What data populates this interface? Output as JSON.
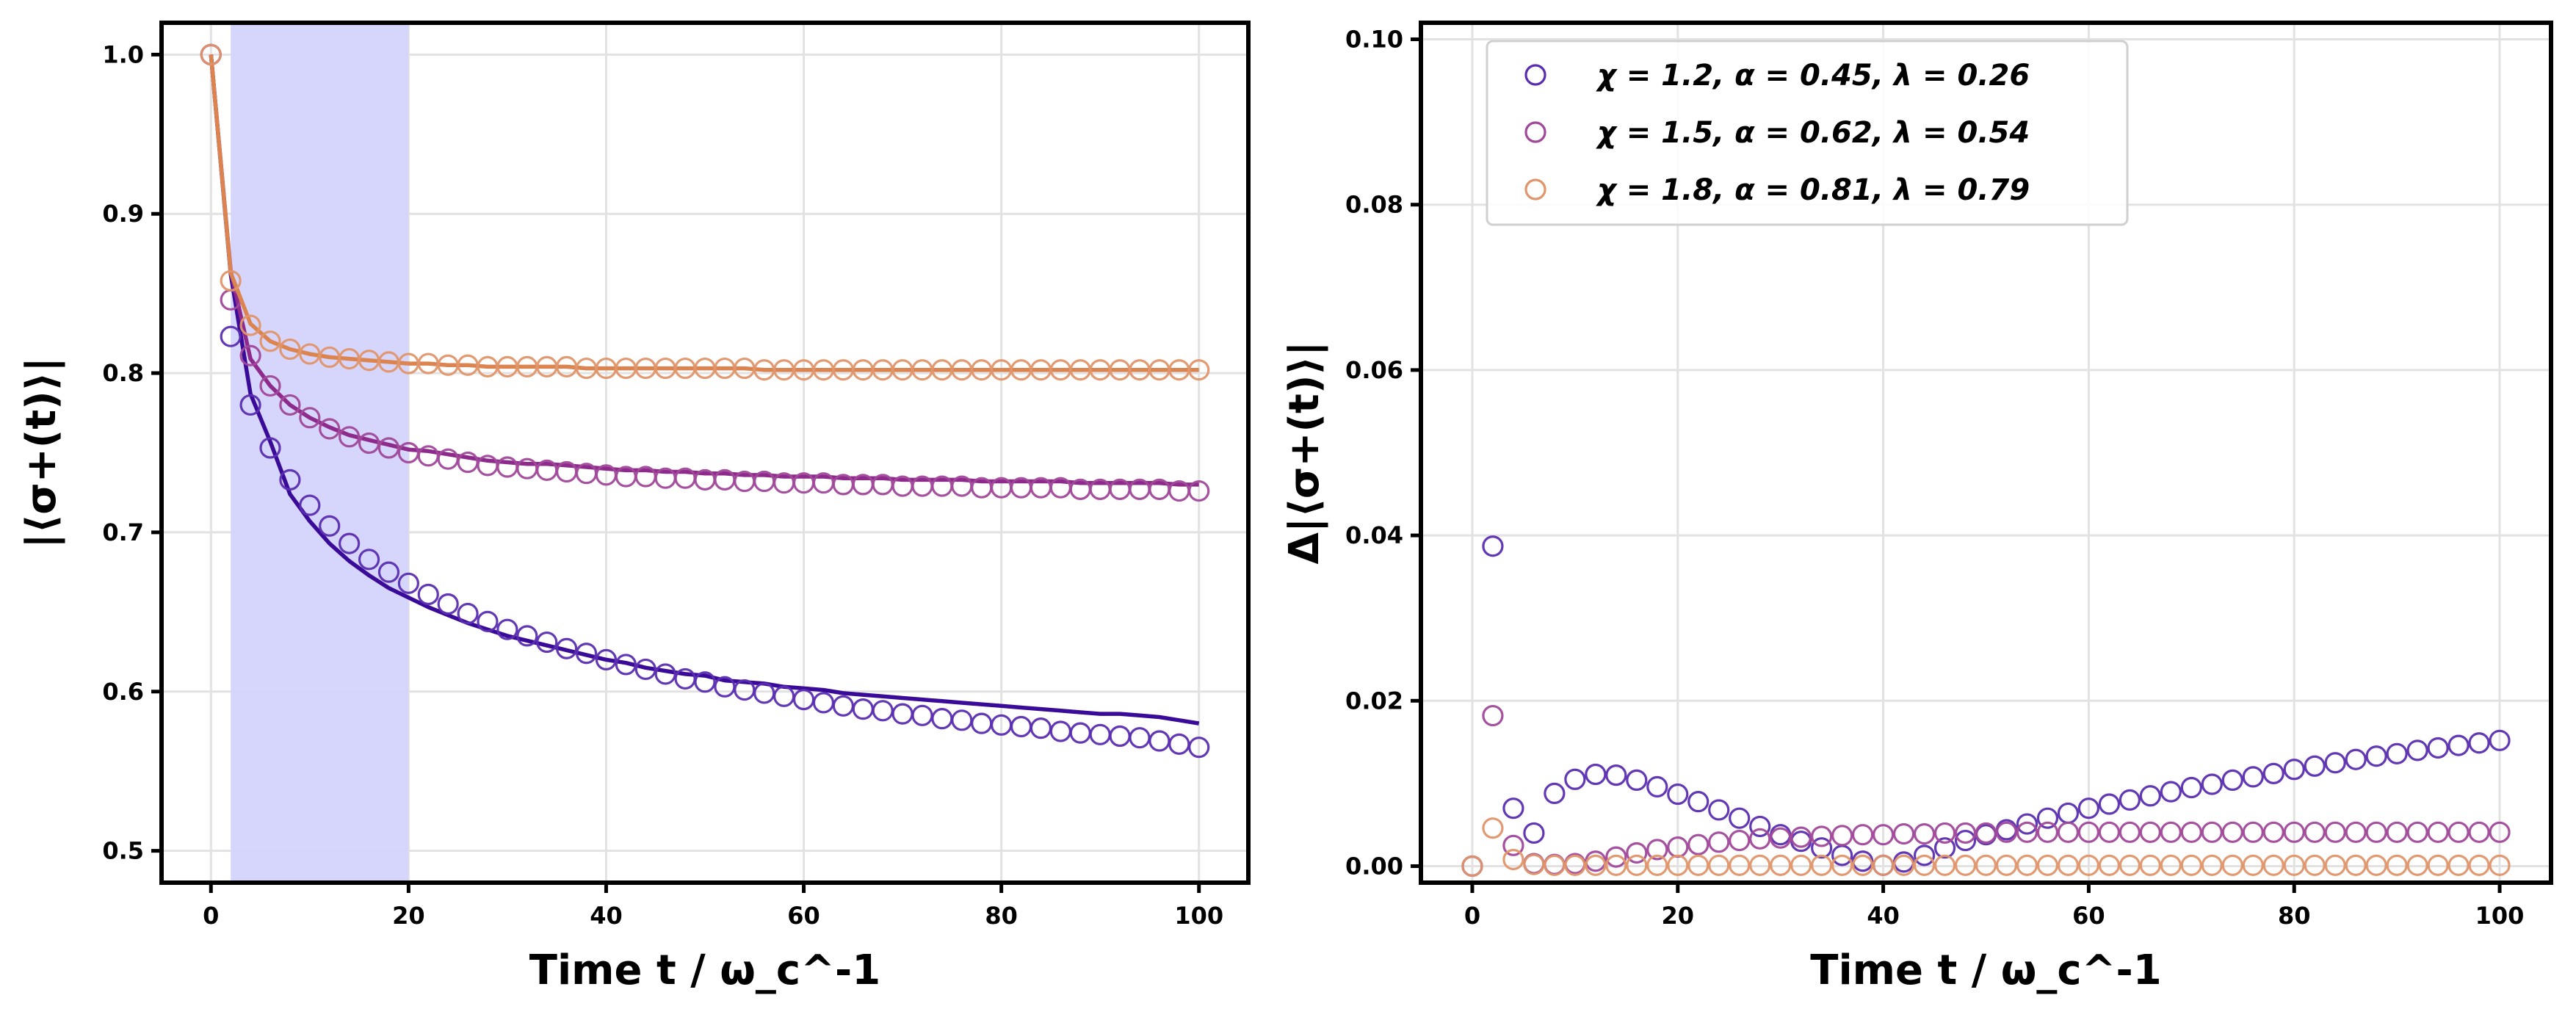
{
  "chart_data": [
    {
      "type": "line",
      "panel": "left",
      "xlabel": "Time t / ω_c^-1",
      "ylabel": "|⟨σ+(t)⟩|",
      "xlim": [
        -5,
        105
      ],
      "ylim": [
        0.48,
        1.02
      ],
      "xticks": [
        0,
        20,
        40,
        60,
        80,
        100
      ],
      "xtick_labels": [
        "0",
        "20",
        "40",
        "60",
        "80",
        "100"
      ],
      "yticks": [
        0.5,
        0.6,
        0.7,
        0.8,
        0.9,
        1.0
      ],
      "ytick_labels": [
        "0.5",
        "0.6",
        "0.7",
        "0.8",
        "0.9",
        "1.0"
      ],
      "grid": true,
      "shaded_region": {
        "x0": 2,
        "x1": 20,
        "color": "#d4d4fc"
      },
      "x": [
        0,
        2,
        4,
        6,
        8,
        10,
        12,
        14,
        16,
        18,
        20,
        22,
        24,
        26,
        28,
        30,
        32,
        34,
        36,
        38,
        40,
        42,
        44,
        46,
        48,
        50,
        52,
        54,
        56,
        58,
        60,
        62,
        64,
        66,
        68,
        70,
        72,
        74,
        76,
        78,
        80,
        82,
        84,
        86,
        88,
        90,
        92,
        94,
        96,
        98,
        100
      ],
      "series": [
        {
          "name": "χ = 1.2, α = 0.45, λ = 0.26",
          "marker_color": "#5a2db0",
          "line_color": "#3a0a99",
          "data": [
            1.0,
            0.823,
            0.78,
            0.753,
            0.733,
            0.717,
            0.704,
            0.693,
            0.683,
            0.675,
            0.668,
            0.661,
            0.655,
            0.649,
            0.644,
            0.639,
            0.635,
            0.631,
            0.627,
            0.624,
            0.62,
            0.617,
            0.614,
            0.611,
            0.608,
            0.606,
            0.603,
            0.601,
            0.599,
            0.597,
            0.595,
            0.593,
            0.591,
            0.589,
            0.588,
            0.586,
            0.585,
            0.583,
            0.582,
            0.58,
            0.579,
            0.578,
            0.577,
            0.575,
            0.574,
            0.573,
            0.572,
            0.571,
            0.569,
            0.567,
            0.565
          ],
          "model": [
            1.0,
            0.862,
            0.787,
            0.757,
            0.724,
            0.707,
            0.693,
            0.682,
            0.673,
            0.665,
            0.659,
            0.653,
            0.648,
            0.643,
            0.639,
            0.635,
            0.632,
            0.629,
            0.626,
            0.623,
            0.62,
            0.618,
            0.615,
            0.613,
            0.611,
            0.61,
            0.607,
            0.606,
            0.605,
            0.603,
            0.602,
            0.601,
            0.599,
            0.598,
            0.597,
            0.596,
            0.595,
            0.594,
            0.593,
            0.592,
            0.591,
            0.59,
            0.589,
            0.588,
            0.587,
            0.586,
            0.586,
            0.585,
            0.584,
            0.582,
            0.58
          ]
        },
        {
          "name": "χ = 1.5, α = 0.62, λ = 0.54",
          "marker_color": "#a0489a",
          "line_color": "#8e2a8c",
          "data": [
            1.0,
            0.846,
            0.811,
            0.792,
            0.78,
            0.772,
            0.765,
            0.76,
            0.756,
            0.753,
            0.75,
            0.748,
            0.746,
            0.744,
            0.742,
            0.741,
            0.74,
            0.739,
            0.738,
            0.737,
            0.736,
            0.735,
            0.735,
            0.734,
            0.734,
            0.733,
            0.733,
            0.732,
            0.732,
            0.731,
            0.731,
            0.731,
            0.73,
            0.73,
            0.73,
            0.729,
            0.729,
            0.729,
            0.729,
            0.728,
            0.728,
            0.728,
            0.728,
            0.728,
            0.727,
            0.727,
            0.727,
            0.727,
            0.727,
            0.726,
            0.726
          ],
          "model": [
            1.0,
            0.864,
            0.809,
            0.792,
            0.78,
            0.772,
            0.766,
            0.761,
            0.758,
            0.755,
            0.752,
            0.751,
            0.749,
            0.747,
            0.745,
            0.744,
            0.743,
            0.743,
            0.742,
            0.741,
            0.74,
            0.739,
            0.739,
            0.738,
            0.738,
            0.737,
            0.737,
            0.736,
            0.736,
            0.735,
            0.735,
            0.735,
            0.734,
            0.734,
            0.734,
            0.733,
            0.733,
            0.733,
            0.733,
            0.732,
            0.732,
            0.732,
            0.732,
            0.732,
            0.731,
            0.731,
            0.731,
            0.731,
            0.731,
            0.73,
            0.73
          ]
        },
        {
          "name": "χ = 1.8, α = 0.81, λ = 0.79",
          "marker_color": "#e0956a",
          "line_color": "#dc8450",
          "data": [
            1.0,
            0.858,
            0.83,
            0.82,
            0.815,
            0.812,
            0.81,
            0.809,
            0.808,
            0.807,
            0.806,
            0.806,
            0.805,
            0.805,
            0.804,
            0.804,
            0.804,
            0.804,
            0.804,
            0.803,
            0.803,
            0.803,
            0.803,
            0.803,
            0.803,
            0.803,
            0.803,
            0.803,
            0.802,
            0.802,
            0.802,
            0.802,
            0.802,
            0.802,
            0.802,
            0.802,
            0.802,
            0.802,
            0.802,
            0.802,
            0.802,
            0.802,
            0.802,
            0.802,
            0.802,
            0.802,
            0.802,
            0.802,
            0.802,
            0.802,
            0.802
          ],
          "model": [
            1.0,
            0.863,
            0.831,
            0.82,
            0.815,
            0.812,
            0.81,
            0.809,
            0.808,
            0.807,
            0.806,
            0.806,
            0.805,
            0.805,
            0.804,
            0.804,
            0.804,
            0.804,
            0.804,
            0.803,
            0.803,
            0.803,
            0.803,
            0.803,
            0.803,
            0.803,
            0.803,
            0.803,
            0.802,
            0.802,
            0.802,
            0.802,
            0.802,
            0.802,
            0.802,
            0.802,
            0.802,
            0.802,
            0.802,
            0.802,
            0.802,
            0.802,
            0.802,
            0.802,
            0.802,
            0.802,
            0.802,
            0.802,
            0.802,
            0.802,
            0.802
          ]
        }
      ]
    },
    {
      "type": "scatter",
      "panel": "right",
      "xlabel": "Time t / ω_c^-1",
      "ylabel": "Δ|⟨σ+(t)⟩|",
      "xlim": [
        -5,
        105
      ],
      "ylim": [
        -0.002,
        0.102
      ],
      "xticks": [
        0,
        20,
        40,
        60,
        80,
        100
      ],
      "xtick_labels": [
        "0",
        "20",
        "40",
        "60",
        "80",
        "100"
      ],
      "yticks": [
        0.0,
        0.02,
        0.04,
        0.06,
        0.08,
        0.1
      ],
      "ytick_labels": [
        "0.00",
        "0.02",
        "0.04",
        "0.06",
        "0.08",
        "0.10"
      ],
      "grid": true,
      "legend_placement": "top-left",
      "x": [
        0,
        2,
        4,
        6,
        8,
        10,
        12,
        14,
        16,
        18,
        20,
        22,
        24,
        26,
        28,
        30,
        32,
        34,
        36,
        38,
        40,
        42,
        44,
        46,
        48,
        50,
        52,
        54,
        56,
        58,
        60,
        62,
        64,
        66,
        68,
        70,
        72,
        74,
        76,
        78,
        80,
        82,
        84,
        86,
        88,
        90,
        92,
        94,
        96,
        98,
        100
      ],
      "series": [
        {
          "name": "χ = 1.2, α = 0.45, λ = 0.26",
          "legend_label": "χ = 1.2, α = 0.45, λ = 0.26",
          "marker_color": "#5a2db0",
          "values": [
            0,
            0.0387,
            0.007,
            0.004,
            0.0088,
            0.0105,
            0.0111,
            0.011,
            0.0104,
            0.0096,
            0.0087,
            0.0078,
            0.0068,
            0.0058,
            0.0048,
            0.0038,
            0.003,
            0.0022,
            0.0013,
            0.0006,
            0.0001,
            0.0005,
            0.0013,
            0.0022,
            0.0031,
            0.0038,
            0.0044,
            0.0051,
            0.0058,
            0.0064,
            0.007,
            0.0075,
            0.008,
            0.0085,
            0.009,
            0.0095,
            0.0099,
            0.0104,
            0.0108,
            0.0112,
            0.0117,
            0.0121,
            0.0125,
            0.0129,
            0.0133,
            0.0136,
            0.014,
            0.0143,
            0.0146,
            0.0149,
            0.0152
          ]
        },
        {
          "name": "χ = 1.5, α = 0.62, λ = 0.54",
          "legend_label": "χ = 1.5, α = 0.62, λ = 0.54",
          "marker_color": "#a0489a",
          "values": [
            0,
            0.0182,
            0.0025,
            0.0003,
            0.0002,
            0.0003,
            0.0006,
            0.0011,
            0.0016,
            0.002,
            0.0023,
            0.0026,
            0.0029,
            0.0031,
            0.0033,
            0.0034,
            0.0035,
            0.0036,
            0.0037,
            0.0038,
            0.0038,
            0.0039,
            0.0039,
            0.004,
            0.004,
            0.004,
            0.0041,
            0.0041,
            0.0041,
            0.0041,
            0.0041,
            0.0041,
            0.0041,
            0.0041,
            0.0041,
            0.0041,
            0.0041,
            0.0041,
            0.0041,
            0.0041,
            0.0041,
            0.0041,
            0.0041,
            0.0041,
            0.0041,
            0.0041,
            0.0041,
            0.0041,
            0.0041,
            0.0041,
            0.0041
          ]
        },
        {
          "name": "χ = 1.8, α = 0.81, λ = 0.79",
          "legend_label": "χ = 1.8, α = 0.81, λ = 0.79",
          "marker_color": "#e0956a",
          "values": [
            0,
            0.0046,
            0.0008,
            0.0002,
            0.0001,
            0.0001,
            0.0001,
            0.0001,
            0.0001,
            0.0001,
            0.0001,
            0.0001,
            0.0001,
            0.0001,
            0.0001,
            0.0001,
            0.0001,
            0.0001,
            0.0001,
            0.0001,
            0.0001,
            0.0001,
            0.0001,
            0.0001,
            0.0001,
            0.0001,
            0.0001,
            0.0001,
            0.0001,
            0.0001,
            0.0001,
            0.0001,
            0.0001,
            0.0001,
            0.0001,
            0.0001,
            0.0001,
            0.0001,
            0.0001,
            0.0001,
            0.0001,
            0.0001,
            0.0001,
            0.0001,
            0.0001,
            0.0001,
            0.0001,
            0.0001,
            0.0001,
            0.0001,
            0.0001
          ]
        }
      ]
    }
  ]
}
